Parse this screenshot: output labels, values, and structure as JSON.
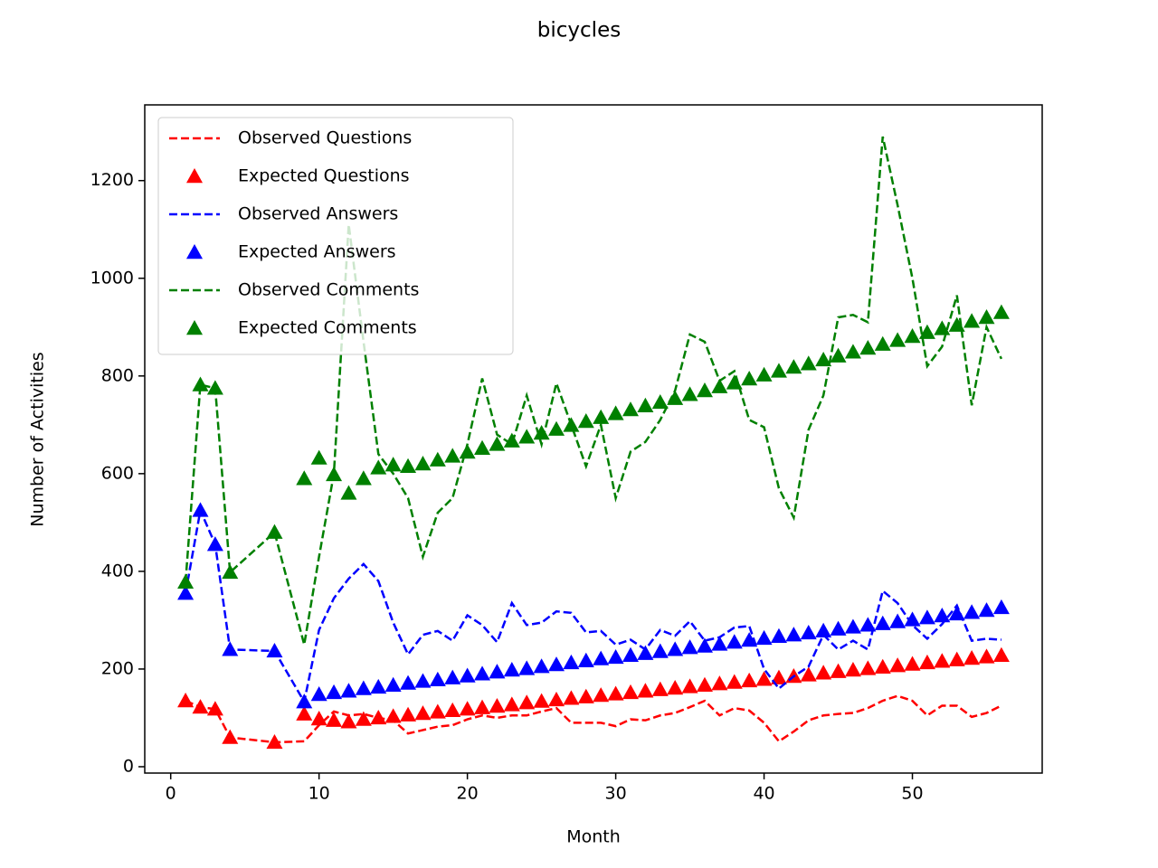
{
  "chart_data": {
    "type": "line",
    "title": "bicycles",
    "x_label": "Month",
    "y_label": "Number of Activities",
    "x": [
      1,
      2,
      3,
      4,
      7,
      9,
      10,
      11,
      12,
      13,
      14,
      15,
      16,
      17,
      18,
      19,
      20,
      21,
      22,
      23,
      24,
      25,
      26,
      27,
      28,
      29,
      30,
      31,
      32,
      33,
      34,
      35,
      36,
      37,
      38,
      39,
      40,
      41,
      42,
      43,
      44,
      45,
      46,
      47,
      48,
      49,
      50,
      51,
      52,
      53,
      54,
      55,
      56
    ],
    "xlim": [
      -1.75,
      58.75
    ],
    "xticks": [
      0,
      10,
      20,
      30,
      40,
      50
    ],
    "ylim": [
      -13,
      1355
    ],
    "yticks": [
      0,
      200,
      400,
      600,
      800,
      1000,
      1200
    ],
    "legend": "upper left",
    "series": [
      {
        "name": "Observed Questions",
        "color": "#ff0000",
        "linestyle": "dashed",
        "values": [
          135,
          122,
          118,
          60,
          50,
          52,
          85,
          113,
          105,
          108,
          100,
          95,
          68,
          75,
          82,
          85,
          97,
          105,
          100,
          105,
          105,
          113,
          120,
          90,
          90,
          90,
          83,
          97,
          95,
          105,
          110,
          122,
          135,
          105,
          120,
          115,
          90,
          52,
          72,
          95,
          105,
          108,
          110,
          120,
          135,
          145,
          135,
          105,
          125,
          125,
          102,
          110,
          125
        ]
      },
      {
        "name": "Expected Questions",
        "color": "#ff0000",
        "marker": "triangle",
        "values": [
          135,
          122,
          118,
          60,
          50,
          108,
          98,
          95,
          92,
          97,
          100,
          103,
          106,
          109,
          112,
          115,
          118,
          121,
          124,
          127,
          131,
          134,
          137,
          140,
          143,
          146,
          149,
          152,
          155,
          158,
          161,
          164,
          167,
          170,
          173,
          176,
          179,
          182,
          185,
          188,
          192,
          195,
          198,
          201,
          204,
          207,
          210,
          213,
          216,
          219,
          222,
          225,
          228
        ]
      },
      {
        "name": "Observed Answers",
        "color": "#0000ff",
        "linestyle": "dashed",
        "values": [
          355,
          525,
          455,
          240,
          237,
          133,
          280,
          345,
          385,
          415,
          380,
          295,
          230,
          270,
          278,
          258,
          310,
          290,
          255,
          335,
          290,
          295,
          318,
          315,
          275,
          278,
          250,
          260,
          240,
          280,
          268,
          298,
          258,
          265,
          285,
          288,
          200,
          160,
          185,
          205,
          270,
          240,
          258,
          240,
          360,
          335,
          290,
          262,
          292,
          330,
          258,
          262,
          260
        ]
      },
      {
        "name": "Expected Answers",
        "color": "#0000ff",
        "marker": "triangle",
        "values": [
          355,
          525,
          455,
          240,
          237,
          133,
          148,
          152,
          155,
          160,
          163,
          167,
          171,
          175,
          178,
          182,
          186,
          190,
          194,
          198,
          201,
          205,
          209,
          213,
          217,
          221,
          224,
          228,
          232,
          236,
          240,
          244,
          247,
          251,
          255,
          259,
          263,
          267,
          270,
          274,
          278,
          282,
          286,
          290,
          293,
          297,
          301,
          305,
          309,
          313,
          316,
          320,
          326
        ]
      },
      {
        "name": "Observed Comments",
        "color": "#008000",
        "linestyle": "dashed",
        "values": [
          378,
          782,
          775,
          398,
          480,
          250,
          430,
          600,
          1110,
          870,
          640,
          600,
          550,
          430,
          520,
          550,
          660,
          795,
          680,
          660,
          760,
          660,
          785,
          700,
          615,
          700,
          550,
          645,
          665,
          710,
          770,
          885,
          870,
          790,
          810,
          710,
          695,
          570,
          510,
          690,
          760,
          920,
          925,
          910,
          1290,
          1150,
          1000,
          820,
          860,
          965,
          740,
          900,
          835
        ]
      },
      {
        "name": "Expected Comments",
        "color": "#008000",
        "marker": "triangle",
        "values": [
          378,
          782,
          775,
          398,
          480,
          590,
          632,
          598,
          560,
          590,
          612,
          618,
          615,
          620,
          628,
          636,
          644,
          652,
          660,
          667,
          675,
          683,
          691,
          699,
          707,
          715,
          723,
          731,
          739,
          746,
          754,
          762,
          770,
          778,
          786,
          794,
          802,
          810,
          818,
          825,
          833,
          841,
          849,
          857,
          865,
          873,
          881,
          889,
          897,
          904,
          912,
          920,
          930
        ]
      }
    ]
  }
}
